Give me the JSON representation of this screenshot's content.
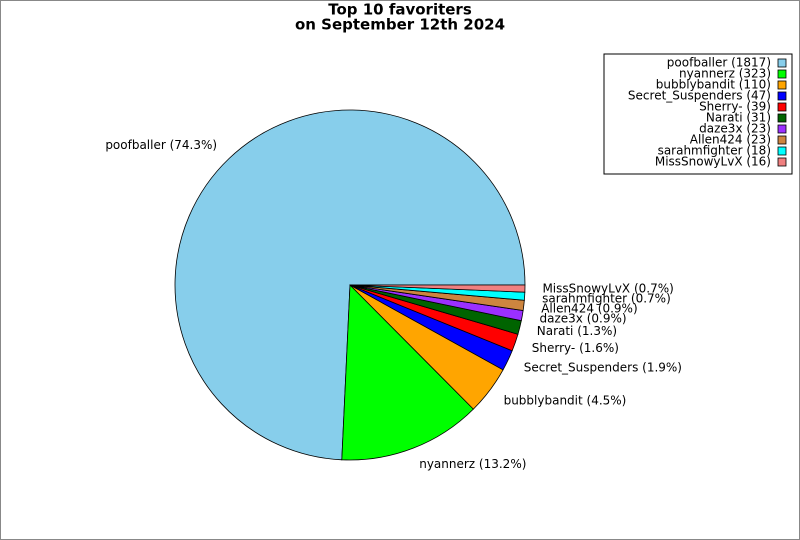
{
  "chart_data": {
    "type": "pie",
    "title": "Top 10 favoriters",
    "subtitle": "on September 12th 2024",
    "values": [
      1817,
      323,
      110,
      47,
      39,
      31,
      23,
      23,
      18,
      16
    ],
    "value_labels": [
      "poofballer (74.3%)",
      "nyannerz (13.2%)",
      "bubblybandit (4.5%)",
      "Secret_Suspenders (1.9%)",
      "Sherry- (1.6%)",
      "Narati (1.3%)",
      "daze3x (0.9%)",
      "Allen424 (0.9%)",
      "sarahmfighter (0.7%)",
      "MissSnowyLvX (0.7%)"
    ],
    "legend_labels": [
      "poofballer (1817)",
      "nyannerz (323)",
      "bubblybandit (110)",
      "Secret_Suspenders (47)",
      "Sherry- (39)",
      "Narati (31)",
      "daze3x (23)",
      "Allen424 (23)",
      "sarahmfighter (18)",
      "MissSnowyLvX (16)"
    ],
    "colors": [
      "#87ceeb",
      "#00ff00",
      "#ffa500",
      "#0000ff",
      "#ff0000",
      "#006400",
      "#9b30ff",
      "#cd853f",
      "#00ffff",
      "#f08080"
    ],
    "legend": "top-right"
  }
}
